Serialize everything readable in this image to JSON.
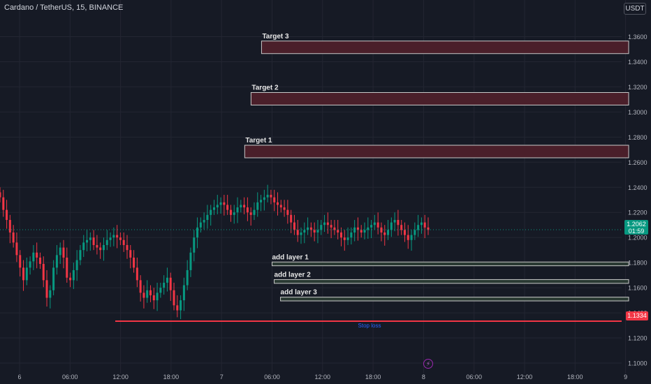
{
  "header": {
    "symbol_title": "Cardano / TetherUS, 15, BINANCE",
    "currency_button": "USDT"
  },
  "price_badge": {
    "price": "1.2062",
    "countdown": "01:59"
  },
  "stop_badge": {
    "price": "1.1334"
  },
  "icons": {
    "bottom_marker": "lightning-icon"
  },
  "colors": {
    "background": "#161a25",
    "grid": "#232632",
    "up_candle": "#089981",
    "down_candle": "#f23645",
    "target_fill": "#4a1f2a",
    "target_border": "#c9c9c9",
    "layer_fill": "#2a3a33",
    "stop_line": "#f23645",
    "stop_label": "#2962ff",
    "axis_text": "#b2b5be"
  },
  "chart_data": {
    "type": "candlestick",
    "y_axis": {
      "range": [
        1.09,
        1.375
      ],
      "ticks": [
        "1.1000",
        "1.1200",
        "1.1400",
        "1.1600",
        "1.1800",
        "1.2000",
        "1.2200",
        "1.2400",
        "1.2600",
        "1.2800",
        "1.3000",
        "1.3200",
        "1.3400",
        "1.3600"
      ]
    },
    "x_axis": {
      "ticks": [
        "6",
        "06:00",
        "12:00",
        "18:00",
        "7",
        "06:00",
        "12:00",
        "18:00",
        "8",
        "06:00",
        "12:00",
        "18:00",
        "9"
      ]
    },
    "last_price": 1.2062,
    "zones": [
      {
        "label": "Target 3",
        "kind": "target",
        "low": 1.3465,
        "high": 1.3565,
        "from": "7 04:45"
      },
      {
        "label": "Target 2",
        "kind": "target",
        "low": 1.3055,
        "high": 1.3155,
        "from": "7 03:30"
      },
      {
        "label": "Target 1",
        "kind": "target",
        "low": 1.2635,
        "high": 1.2735,
        "from": "7 02:45"
      },
      {
        "label": "add layer 1",
        "kind": "layer",
        "low": 1.1775,
        "high": 1.1805,
        "from": "7 06:00"
      },
      {
        "label": "add layer 2",
        "kind": "layer",
        "low": 1.1635,
        "high": 1.1665,
        "from": "7 06:15"
      },
      {
        "label": "add layer 3",
        "kind": "layer",
        "low": 1.1495,
        "high": 1.1525,
        "from": "7 07:00"
      }
    ],
    "stop_loss": {
      "label": "Stop loss",
      "value": 1.1334
    },
    "series_closes": [
      1.232,
      1.222,
      1.214,
      1.204,
      1.196,
      1.186,
      1.176,
      1.166,
      1.176,
      1.181,
      1.188,
      1.184,
      1.179,
      1.166,
      1.152,
      1.158,
      1.176,
      1.186,
      1.192,
      1.184,
      1.168,
      1.166,
      1.174,
      1.182,
      1.19,
      1.196,
      1.198,
      1.2,
      1.194,
      1.192,
      1.19,
      1.194,
      1.198,
      1.2,
      1.202,
      1.2,
      1.198,
      1.194,
      1.19,
      1.184,
      1.176,
      1.166,
      1.156,
      1.152,
      1.158,
      1.154,
      1.15,
      1.156,
      1.16,
      1.164,
      1.168,
      1.158,
      1.146,
      1.142,
      1.15,
      1.162,
      1.174,
      1.188,
      1.2,
      1.208,
      1.212,
      1.214,
      1.218,
      1.222,
      1.224,
      1.226,
      1.228,
      1.226,
      1.222,
      1.218,
      1.22,
      1.224,
      1.226,
      1.224,
      1.22,
      1.218,
      1.222,
      1.228,
      1.23,
      1.232,
      1.234,
      1.232,
      1.228,
      1.226,
      1.224,
      1.222,
      1.218,
      1.212,
      1.206,
      1.202,
      1.204,
      1.206,
      1.208,
      1.206,
      1.204,
      1.206,
      1.21,
      1.212,
      1.21,
      1.208,
      1.206,
      1.204,
      1.2,
      1.198,
      1.2,
      1.204,
      1.208,
      1.206,
      1.204,
      1.206,
      1.208,
      1.21,
      1.212,
      1.208,
      1.204,
      1.202,
      1.206,
      1.212,
      1.214,
      1.21,
      1.206,
      1.202,
      1.198,
      1.202,
      1.206,
      1.21,
      1.212,
      1.208,
      1.206
    ]
  }
}
